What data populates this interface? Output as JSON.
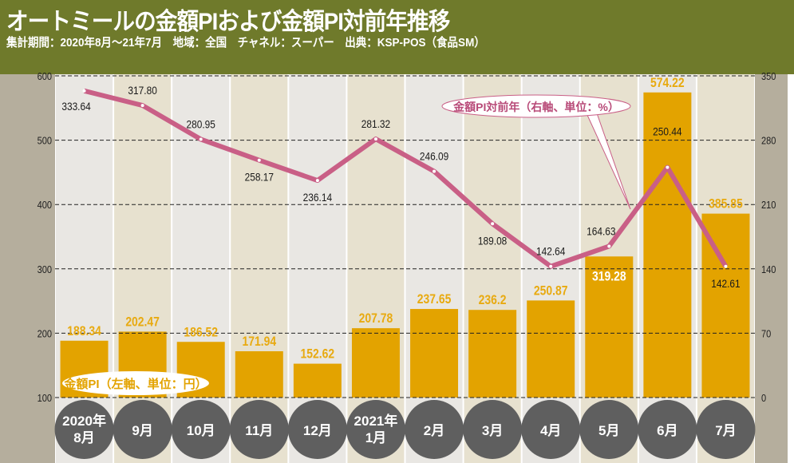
{
  "header": {
    "title": "オートミールの金額PIおよび金額PI対前年推移",
    "subtitle": "集計期間：2020年8月～21年7月　地域：全国　チャネル：スーパー　出典：KSP-POS（食品SM）"
  },
  "colors": {
    "header_bg": "#6f7a2b",
    "bar": "#e3a300",
    "bar_label": "#e8aa10",
    "line": "#c95f86",
    "axis_band": "#b5ae9d",
    "col_a": "#e9e7e3",
    "col_b": "#e7e1cf",
    "month_circle": "#5f5f5f"
  },
  "chart_data": {
    "type": "bar+line",
    "categories": [
      "2020年\n8月",
      "9月",
      "10月",
      "11月",
      "12月",
      "2021年\n1月",
      "2月",
      "3月",
      "4月",
      "5月",
      "6月",
      "7月"
    ],
    "series": [
      {
        "name": "金額PI（左軸、単位：円）",
        "type": "bar",
        "axis": "left",
        "values": [
          188.34,
          202.47,
          186.52,
          171.94,
          152.62,
          207.78,
          237.65,
          236.2,
          250.87,
          319.28,
          574.22,
          385.85
        ],
        "labels": [
          "188.34",
          "202.47",
          "186.52",
          "171.94",
          "152.62",
          "207.78",
          "237.65",
          "236.2",
          "250.87",
          "319.28",
          "574.22",
          "385.85"
        ]
      },
      {
        "name": "金額PI対前年（右軸、単位：%）",
        "type": "line",
        "axis": "right",
        "values": [
          333.64,
          317.8,
          280.95,
          258.17,
          236.14,
          281.32,
          246.09,
          189.08,
          142.64,
          164.63,
          250.44,
          142.61
        ],
        "labels": [
          "333.64",
          "317.80",
          "280.95",
          "258.17",
          "236.14",
          "281.32",
          "246.09",
          "189.08",
          "142.64",
          "164.63",
          "250.44",
          "142.61"
        ]
      }
    ],
    "left_axis": {
      "range": [
        100,
        600
      ],
      "ticks": [
        "100",
        "200",
        "300",
        "400",
        "500",
        "600"
      ]
    },
    "right_axis": {
      "range": [
        0,
        350
      ],
      "ticks": [
        "0",
        "70",
        "140",
        "210",
        "280",
        "350"
      ]
    },
    "grid": "dashed horizontal"
  }
}
